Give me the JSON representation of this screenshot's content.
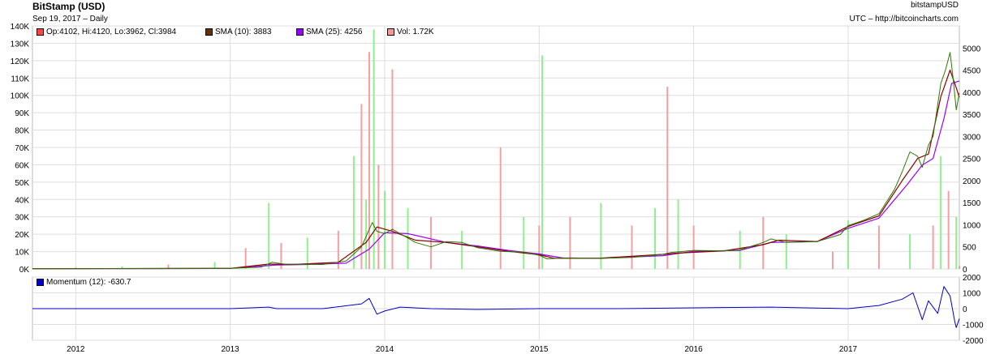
{
  "header": {
    "title": "BitStamp (USD)",
    "subtitle": "Sep 19, 2017 – Daily",
    "source_name": "bitstampUSD",
    "source_url": "UTC – http://bitcoincharts.com"
  },
  "legend": {
    "ohlc": {
      "label": "Op:4102, Hi:4120, Lo:3962, Cl:3984",
      "color": "#ff4444"
    },
    "sma10": {
      "label": "SMA (10): 3883",
      "color": "#663300"
    },
    "sma25": {
      "label": "SMA (25): 4256",
      "color": "#9900ff"
    },
    "vol": {
      "label": "Vol: 1.72K",
      "color": "#ff9999"
    },
    "momentum": {
      "label": "Momentum (12): -630.7",
      "color": "#0000cc"
    }
  },
  "colors": {
    "price": "#2d7a00",
    "sma10": "#8b0000",
    "sma25": "#9900ff",
    "vol_up": "#90ee90",
    "vol_down": "#f4a0a0",
    "momentum": "#0000cc",
    "grid": "#dddddd"
  },
  "chart_data": [
    {
      "type": "line",
      "panel": "price",
      "x_ticks": [
        "2012",
        "2013",
        "2014",
        "2015",
        "2016",
        "2017"
      ],
      "xlim": [
        2011.72,
        2017.72
      ],
      "y_right_ticks": [
        "0",
        "500",
        "1000",
        "1500",
        "2000",
        "2500",
        "3000",
        "3500",
        "4000",
        "4500",
        "5000"
      ],
      "y_right_lim": [
        0,
        5500
      ],
      "y_left_ticks": [
        "0K",
        "10K",
        "20K",
        "30K",
        "40K",
        "50K",
        "60K",
        "70K",
        "80K",
        "90K",
        "100K",
        "110K",
        "120K",
        "130K",
        "140K"
      ],
      "y_left_lim": [
        0,
        140000
      ],
      "grid": true,
      "series": [
        {
          "name": "Op:4102, Hi:4120, Lo:3962, Cl:3984",
          "x": [
            2011.72,
            2012.0,
            2012.5,
            2013.0,
            2013.2,
            2013.27,
            2013.35,
            2013.6,
            2013.75,
            2013.85,
            2013.92,
            2013.95,
            2014.0,
            2014.05,
            2014.1,
            2014.2,
            2014.3,
            2014.4,
            2014.5,
            2014.6,
            2014.75,
            2014.9,
            2015.0,
            2015.05,
            2015.2,
            2015.4,
            2015.6,
            2015.8,
            2015.85,
            2016.0,
            2016.2,
            2016.3,
            2016.45,
            2016.5,
            2016.6,
            2016.8,
            2016.95,
            2017.0,
            2017.1,
            2017.2,
            2017.3,
            2017.35,
            2017.4,
            2017.45,
            2017.48,
            2017.52,
            2017.55,
            2017.6,
            2017.63,
            2017.66,
            2017.68,
            2017.7,
            2017.72
          ],
          "values": [
            5,
            6,
            10,
            13,
            40,
            150,
            110,
            100,
            180,
            500,
            1050,
            850,
            800,
            900,
            800,
            600,
            500,
            620,
            600,
            480,
            400,
            380,
            310,
            230,
            250,
            240,
            260,
            330,
            370,
            420,
            410,
            430,
            600,
            680,
            600,
            620,
            780,
            980,
            1100,
            1250,
            1800,
            2200,
            2650,
            2550,
            2300,
            2800,
            3000,
            4200,
            4500,
            4900,
            4300,
            3600,
            3984
          ]
        },
        {
          "name": "SMA (10): 3883",
          "x": [
            2011.72,
            2012.5,
            2013.0,
            2013.25,
            2013.4,
            2013.7,
            2013.88,
            2013.95,
            2014.05,
            2014.2,
            2014.4,
            2014.6,
            2014.8,
            2015.0,
            2015.1,
            2015.4,
            2015.8,
            2015.9,
            2016.2,
            2016.45,
            2016.55,
            2016.8,
            2017.0,
            2017.2,
            2017.35,
            2017.45,
            2017.52,
            2017.6,
            2017.66,
            2017.7,
            2017.72
          ],
          "values": [
            5,
            10,
            13,
            110,
            100,
            150,
            600,
            950,
            850,
            650,
            600,
            500,
            400,
            320,
            240,
            245,
            330,
            360,
            410,
            550,
            650,
            620,
            960,
            1200,
            2000,
            2500,
            2600,
            3900,
            4500,
            4100,
            3883
          ]
        },
        {
          "name": "SMA (25): 4256",
          "x": [
            2011.72,
            2012.5,
            2013.0,
            2013.3,
            2013.5,
            2013.75,
            2013.9,
            2014.0,
            2014.15,
            2014.4,
            2014.6,
            2014.8,
            2015.0,
            2015.15,
            2015.4,
            2015.8,
            2016.0,
            2016.3,
            2016.5,
            2016.8,
            2017.0,
            2017.2,
            2017.38,
            2017.48,
            2017.55,
            2017.62,
            2017.67,
            2017.72
          ],
          "values": [
            5,
            10,
            13,
            90,
            100,
            130,
            450,
            820,
            800,
            600,
            520,
            420,
            340,
            250,
            240,
            300,
            400,
            420,
            600,
            620,
            920,
            1150,
            1900,
            2350,
            2500,
            3400,
            4200,
            4256
          ]
        }
      ]
    },
    {
      "type": "bar",
      "panel": "volume",
      "name": "Vol: 1.72K",
      "y_axis": "left",
      "x": [
        2011.72,
        2012.0,
        2012.3,
        2012.6,
        2012.9,
        2013.1,
        2013.25,
        2013.33,
        2013.5,
        2013.7,
        2013.8,
        2013.85,
        2013.88,
        2013.9,
        2013.93,
        2013.96,
        2014.0,
        2014.05,
        2014.15,
        2014.3,
        2014.5,
        2014.75,
        2014.9,
        2015.0,
        2015.02,
        2015.2,
        2015.4,
        2015.6,
        2015.75,
        2015.83,
        2015.9,
        2016.0,
        2016.3,
        2016.45,
        2016.6,
        2016.9,
        2017.0,
        2017.2,
        2017.4,
        2017.55,
        2017.6,
        2017.65,
        2017.7,
        2017.72
      ],
      "values": [
        500,
        800,
        1500,
        2500,
        4000,
        12000,
        38000,
        15000,
        18000,
        22000,
        65000,
        95000,
        40000,
        125000,
        138000,
        60000,
        45000,
        115000,
        35000,
        30000,
        22000,
        70000,
        30000,
        25000,
        123000,
        30000,
        38000,
        25000,
        35000,
        105000,
        40000,
        25000,
        22000,
        30000,
        20000,
        10000,
        28000,
        25000,
        20000,
        25000,
        65000,
        45000,
        30000,
        1720
      ]
    },
    {
      "type": "line",
      "panel": "momentum",
      "name": "Momentum (12): -630.7",
      "x_ticks": [
        "2012",
        "2013",
        "2014",
        "2015",
        "2016",
        "2017"
      ],
      "xlim": [
        2011.72,
        2017.72
      ],
      "y_ticks": [
        "2000",
        "1000",
        "0",
        "-1000",
        "-2000"
      ],
      "ylim": [
        -2000,
        2000
      ],
      "x": [
        2011.72,
        2012.5,
        2013.0,
        2013.25,
        2013.3,
        2013.6,
        2013.85,
        2013.9,
        2013.95,
        2014.0,
        2014.1,
        2014.3,
        2014.6,
        2015.0,
        2015.5,
        2016.0,
        2016.5,
        2017.0,
        2017.2,
        2017.35,
        2017.42,
        2017.48,
        2017.52,
        2017.58,
        2017.62,
        2017.66,
        2017.69,
        2017.7,
        2017.72
      ],
      "values": [
        0,
        0,
        0,
        100,
        0,
        0,
        300,
        650,
        -350,
        -150,
        100,
        0,
        -50,
        0,
        0,
        50,
        100,
        0,
        200,
        600,
        1000,
        -700,
        500,
        -300,
        1400,
        800,
        -800,
        -1200,
        -630.7
      ]
    }
  ]
}
